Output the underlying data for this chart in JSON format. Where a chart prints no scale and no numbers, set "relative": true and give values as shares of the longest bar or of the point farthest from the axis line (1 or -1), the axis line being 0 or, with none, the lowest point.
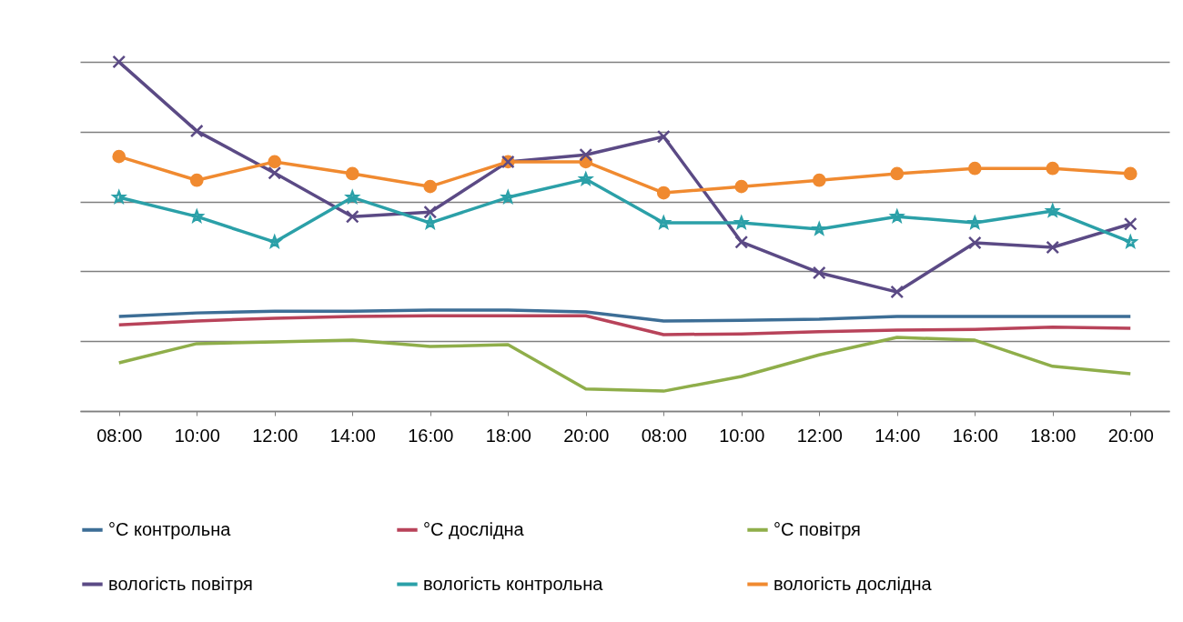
{
  "chart_data": {
    "type": "line",
    "relative": true,
    "grid": "y",
    "legend": "bottom",
    "tick_labels": "x",
    "categories": [
      "08:00",
      "10:00",
      "12:00",
      "14:00",
      "16:00",
      "18:00",
      "20:00",
      "08:00",
      "10:00",
      "12:00",
      "14:00",
      "16:00",
      "18:00",
      "20:00"
    ],
    "series": [
      {
        "name": "°C контрольна",
        "color": "#3d6e96",
        "marker": "none",
        "values": [
          0.271,
          0.281,
          0.286,
          0.286,
          0.289,
          0.289,
          0.284,
          0.258,
          0.26,
          0.263,
          0.271,
          0.271,
          0.271,
          0.271
        ]
      },
      {
        "name": "°C дослідна",
        "color": "#b8435a",
        "marker": "none",
        "values": [
          0.247,
          0.258,
          0.266,
          0.271,
          0.273,
          0.273,
          0.273,
          0.219,
          0.221,
          0.227,
          0.232,
          0.234,
          0.24,
          0.237
        ]
      },
      {
        "name": "°C повітря",
        "color": "#8fae4a",
        "marker": "none",
        "values": [
          0.138,
          0.193,
          0.198,
          0.203,
          0.185,
          0.19,
          0.063,
          0.057,
          0.099,
          0.161,
          0.211,
          0.203,
          0.128,
          0.107
        ]
      },
      {
        "name": "вологість повітря",
        "color": "#5b4a85",
        "marker": "cross",
        "values": [
          1,
          0.802,
          0.682,
          0.557,
          0.57,
          0.714,
          0.734,
          0.786,
          0.484,
          0.396,
          0.341,
          0.482,
          0.469,
          0.536
        ]
      },
      {
        "name": "вологість контрольна",
        "color": "#2ba0a8",
        "marker": "star",
        "values": [
          0.612,
          0.557,
          0.484,
          0.612,
          0.539,
          0.612,
          0.664,
          0.539,
          0.539,
          0.521,
          0.557,
          0.539,
          0.573,
          0.484
        ]
      },
      {
        "name": "вологість дослідна",
        "color": "#f08a30",
        "marker": "circle",
        "values": [
          0.729,
          0.661,
          0.714,
          0.68,
          0.643,
          0.714,
          0.714,
          0.625,
          0.643,
          0.661,
          0.68,
          0.695,
          0.695,
          0.68
        ]
      }
    ]
  }
}
